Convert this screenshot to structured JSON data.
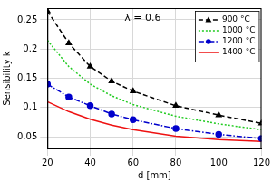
{
  "chart_data": {
    "type": "line",
    "x_label": "d [mm]",
    "y_label": "Sensibility k",
    "annotation": "λ = 0.6",
    "x": [
      20,
      30,
      40,
      50,
      60,
      80,
      100,
      120
    ],
    "series": [
      {
        "name": "900 °C",
        "color": "#000000",
        "marker": "triangle",
        "line_style": "dashed",
        "values": [
          0.265,
          0.21,
          0.17,
          0.145,
          0.128,
          0.103,
          0.087,
          0.073
        ]
      },
      {
        "name": "1000 °C",
        "color": "#22cc22",
        "marker": "none",
        "line_style": "dotted",
        "values": [
          0.215,
          0.17,
          0.14,
          0.12,
          0.105,
          0.085,
          0.072,
          0.062
        ]
      },
      {
        "name": "1200 °C",
        "color": "#0000cc",
        "marker": "circle",
        "line_style": "dashdot",
        "values": [
          0.14,
          0.118,
          0.103,
          0.089,
          0.079,
          0.064,
          0.054,
          0.047
        ]
      },
      {
        "name": "1400 °C",
        "color": "#ee1111",
        "marker": "none",
        "line_style": "solid",
        "values": [
          0.11,
          0.093,
          0.08,
          0.07,
          0.062,
          0.051,
          0.045,
          0.042
        ]
      }
    ],
    "xlim": [
      20,
      120
    ],
    "xticks": [
      20,
      40,
      60,
      80,
      100,
      120
    ],
    "ylim": [
      0.03,
      0.27
    ],
    "yticks": [
      0.05,
      0.1,
      0.15,
      0.2,
      0.25
    ],
    "grid": true,
    "legend": "upper right"
  }
}
